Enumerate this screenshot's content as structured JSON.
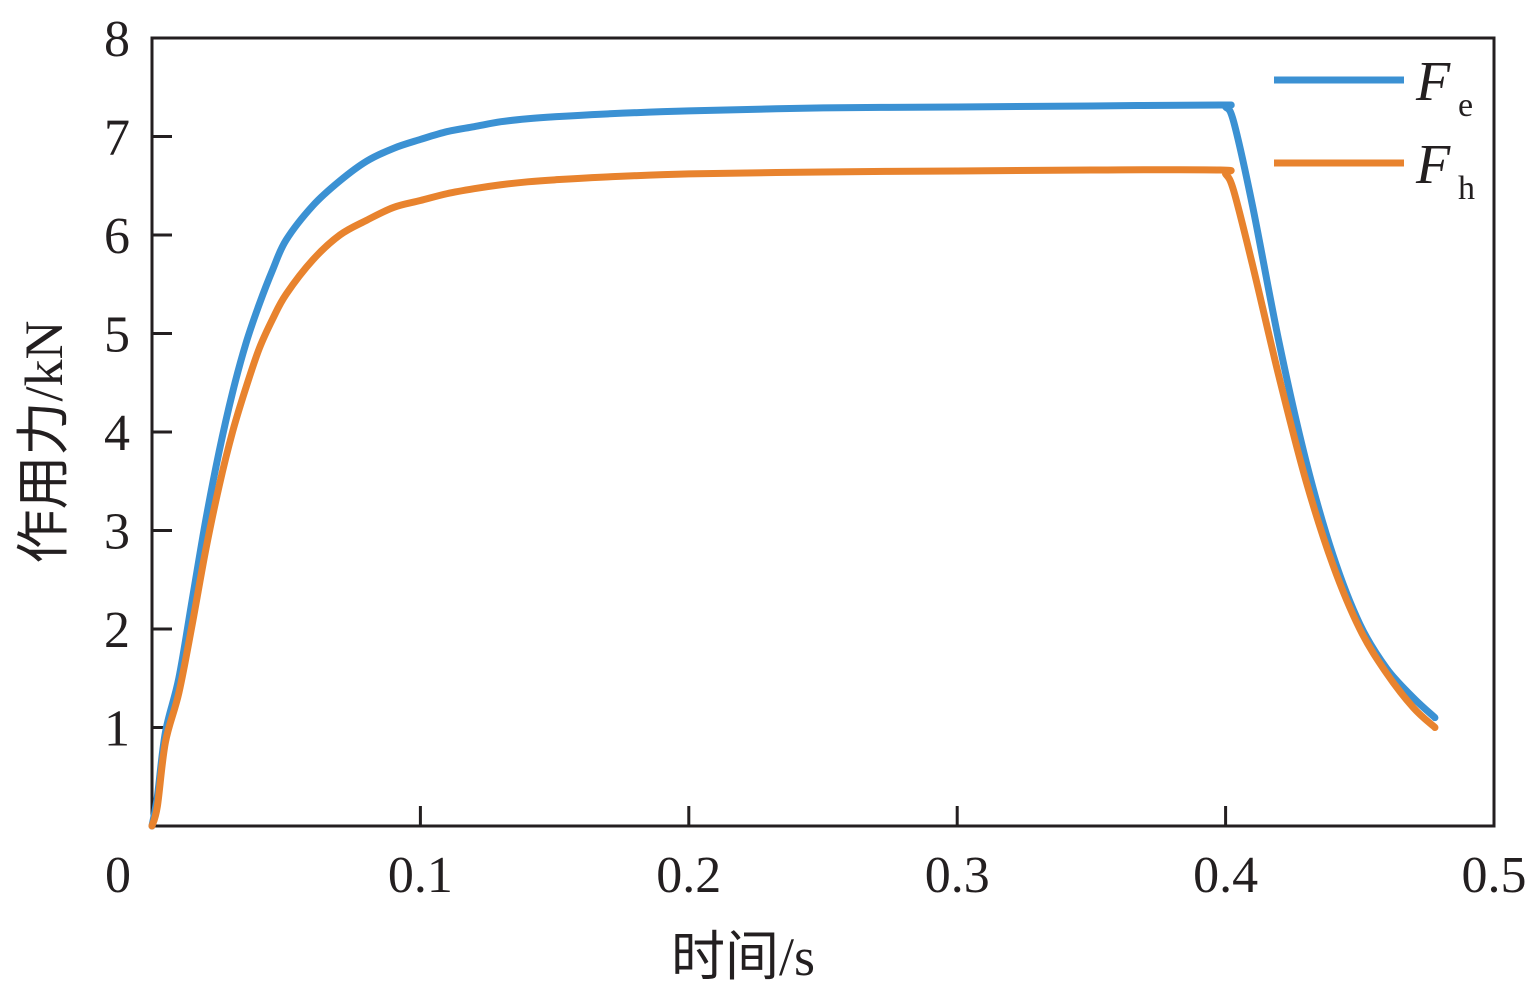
{
  "chart_data": {
    "type": "line",
    "title": "",
    "xlabel": "时间/s",
    "ylabel": "作用力/kN",
    "xlim": [
      0,
      0.5
    ],
    "ylim": [
      0,
      8
    ],
    "x_ticks": [
      "0",
      "0.1",
      "0.2",
      "0.3",
      "0.4",
      "0.5"
    ],
    "y_ticks": [
      "1",
      "2",
      "3",
      "4",
      "5",
      "6",
      "7",
      "8"
    ],
    "grid": false,
    "legend_position": "top-right",
    "colors": {
      "axis": "#231f20",
      "Fe": "#3b91d3",
      "Fh": "#e8832e"
    },
    "series": [
      {
        "name": "Fe",
        "legend_main": "F",
        "legend_sub": "e",
        "color": "#3b91d3",
        "x": [
          0.0,
          0.002,
          0.005,
          0.01,
          0.015,
          0.02,
          0.025,
          0.03,
          0.035,
          0.04,
          0.045,
          0.05,
          0.06,
          0.07,
          0.08,
          0.09,
          0.1,
          0.11,
          0.12,
          0.13,
          0.14,
          0.15,
          0.17,
          0.2,
          0.25,
          0.3,
          0.35,
          0.398,
          0.4,
          0.403,
          0.41,
          0.42,
          0.43,
          0.44,
          0.45,
          0.46,
          0.47,
          0.478
        ],
        "y": [
          0.0,
          0.3,
          0.95,
          1.5,
          2.3,
          3.1,
          3.8,
          4.4,
          4.9,
          5.3,
          5.65,
          5.95,
          6.3,
          6.55,
          6.75,
          6.88,
          6.97,
          7.05,
          7.1,
          7.15,
          7.18,
          7.2,
          7.23,
          7.26,
          7.29,
          7.3,
          7.31,
          7.32,
          7.3,
          7.15,
          6.3,
          4.9,
          3.7,
          2.75,
          2.05,
          1.6,
          1.3,
          1.1
        ]
      },
      {
        "name": "Fh",
        "legend_main": "F",
        "legend_sub": "h",
        "color": "#e8832e",
        "x": [
          0.0,
          0.002,
          0.005,
          0.01,
          0.015,
          0.02,
          0.025,
          0.03,
          0.035,
          0.04,
          0.045,
          0.05,
          0.06,
          0.07,
          0.08,
          0.09,
          0.1,
          0.11,
          0.12,
          0.13,
          0.14,
          0.15,
          0.17,
          0.2,
          0.25,
          0.3,
          0.35,
          0.398,
          0.4,
          0.403,
          0.41,
          0.42,
          0.43,
          0.44,
          0.45,
          0.46,
          0.47,
          0.478
        ],
        "y": [
          0.0,
          0.2,
          0.85,
          1.35,
          2.05,
          2.8,
          3.45,
          4.0,
          4.45,
          4.85,
          5.15,
          5.4,
          5.75,
          6.0,
          6.15,
          6.28,
          6.35,
          6.42,
          6.47,
          6.51,
          6.54,
          6.56,
          6.59,
          6.62,
          6.64,
          6.65,
          6.66,
          6.66,
          6.62,
          6.45,
          5.7,
          4.55,
          3.5,
          2.65,
          2.0,
          1.55,
          1.2,
          1.0
        ]
      }
    ]
  }
}
